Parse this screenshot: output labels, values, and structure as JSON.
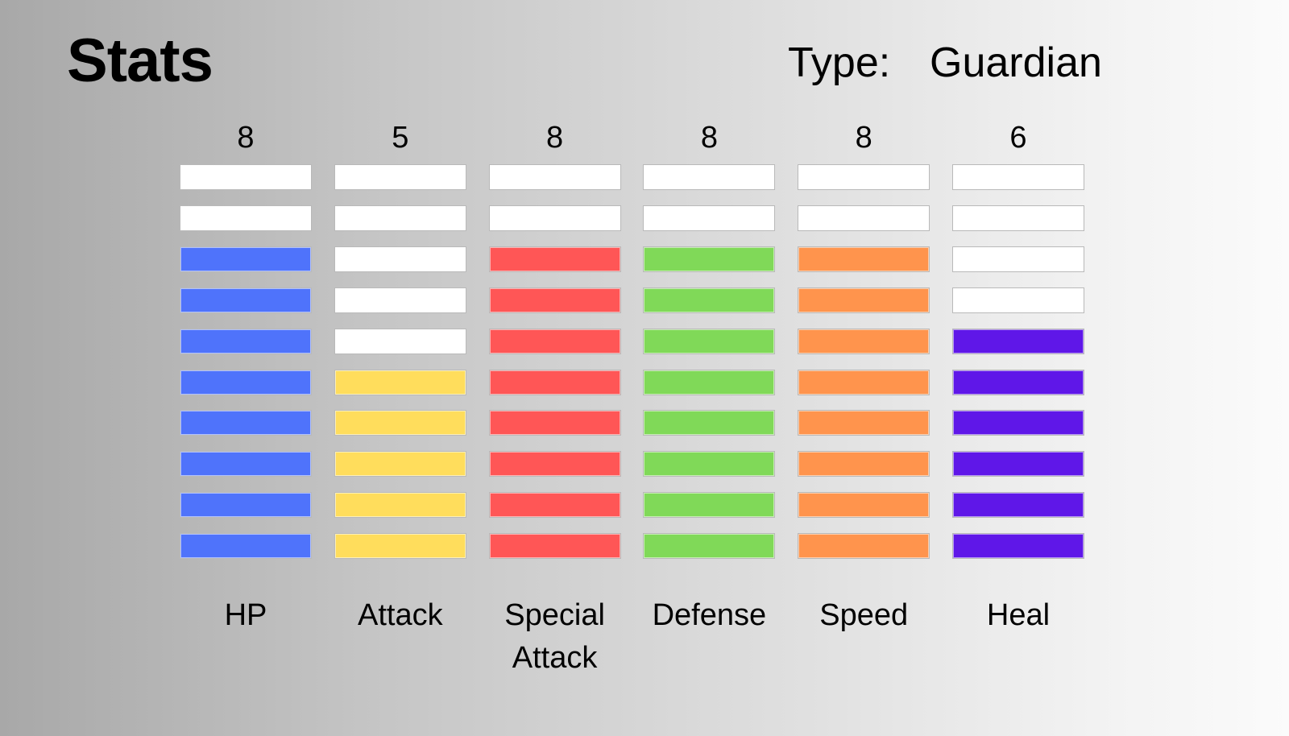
{
  "title": "Stats",
  "type": {
    "label": "Type:",
    "value": "Guardian"
  },
  "max_level": 10,
  "empty_color": "#ffffff",
  "stats": [
    {
      "name": "HP",
      "value": 8,
      "color": "#4f73fb"
    },
    {
      "name": "Attack",
      "value": 5,
      "color": "#ffdd5c"
    },
    {
      "name": "Special\nAttack",
      "value": 8,
      "color": "#ff5656"
    },
    {
      "name": "Defense",
      "value": 8,
      "color": "#80d958"
    },
    {
      "name": "Speed",
      "value": 8,
      "color": "#ff944d"
    },
    {
      "name": "Heal",
      "value": 6,
      "color": "#5f17e8"
    }
  ]
}
